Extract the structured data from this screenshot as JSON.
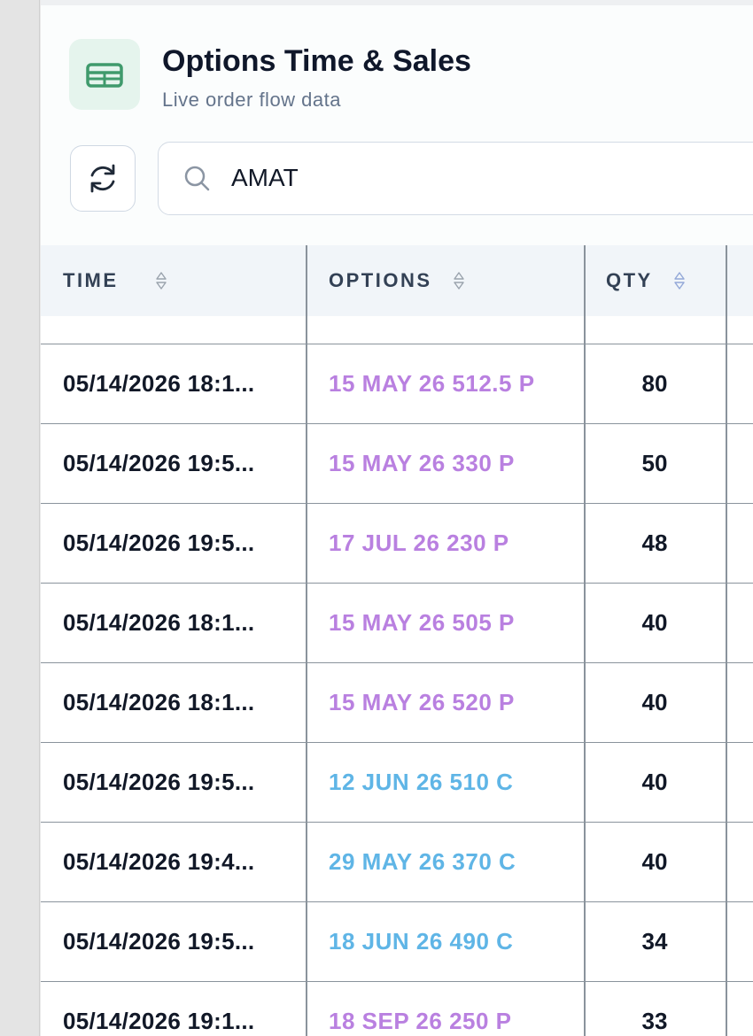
{
  "header": {
    "title": "Options Time & Sales",
    "subtitle": "Live order flow data"
  },
  "search": {
    "value": "AMAT"
  },
  "table": {
    "columns": [
      "TIME",
      "OPTIONS",
      "QTY"
    ],
    "rows": [
      {
        "time": "05/14/2026 18:1...",
        "option": "15 MAY 26 512.5 P",
        "qty": 80,
        "color": "#b980e0"
      },
      {
        "time": "05/14/2026 19:5...",
        "option": "15 MAY 26 330 P",
        "qty": 50,
        "color": "#b980e0"
      },
      {
        "time": "05/14/2026 19:5...",
        "option": "17 JUL 26 230 P",
        "qty": 48,
        "color": "#b980e0"
      },
      {
        "time": "05/14/2026 18:1...",
        "option": "15 MAY 26 505 P",
        "qty": 40,
        "color": "#b980e0"
      },
      {
        "time": "05/14/2026 18:1...",
        "option": "15 MAY 26 520 P",
        "qty": 40,
        "color": "#b980e0"
      },
      {
        "time": "05/14/2026 19:5...",
        "option": "12 JUN 26 510 C",
        "qty": 40,
        "color": "#5fb5e6"
      },
      {
        "time": "05/14/2026 19:4...",
        "option": "29 MAY 26 370 C",
        "qty": 40,
        "color": "#5fb5e6"
      },
      {
        "time": "05/14/2026 19:5...",
        "option": "18 JUN 26 490 C",
        "qty": 34,
        "color": "#5fb5e6"
      },
      {
        "time": "05/14/2026 19:1...",
        "option": "18 SEP 26 250 P",
        "qty": 33,
        "color": "#b980e0"
      }
    ]
  }
}
